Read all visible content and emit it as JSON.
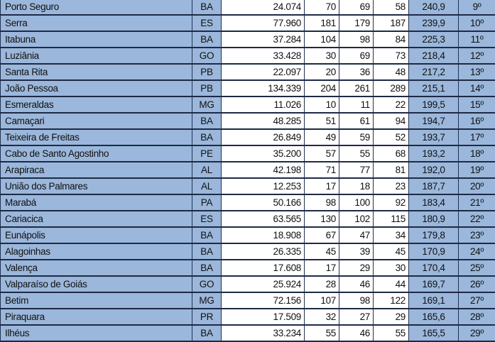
{
  "table": {
    "rows": [
      {
        "city": "Porto Seguro",
        "uf": "BA",
        "pop": "24.074",
        "a": "70",
        "b": "69",
        "c": "58",
        "index": "240,9",
        "rank": "9º"
      },
      {
        "city": "Serra",
        "uf": "ES",
        "pop": "77.960",
        "a": "181",
        "b": "179",
        "c": "187",
        "index": "239,9",
        "rank": "10º"
      },
      {
        "city": "Itabuna",
        "uf": "BA",
        "pop": "37.284",
        "a": "104",
        "b": "98",
        "c": "84",
        "index": "225,3",
        "rank": "11º"
      },
      {
        "city": "Luziânia",
        "uf": "GO",
        "pop": "33.428",
        "a": "30",
        "b": "69",
        "c": "73",
        "index": "218,4",
        "rank": "12º"
      },
      {
        "city": "Santa Rita",
        "uf": "PB",
        "pop": "22.097",
        "a": "20",
        "b": "36",
        "c": "48",
        "index": "217,2",
        "rank": "13º"
      },
      {
        "city": "João Pessoa",
        "uf": "PB",
        "pop": "134.339",
        "a": "204",
        "b": "261",
        "c": "289",
        "index": "215,1",
        "rank": "14º"
      },
      {
        "city": "Esmeraldas",
        "uf": "MG",
        "pop": "11.026",
        "a": "10",
        "b": "11",
        "c": "22",
        "index": "199,5",
        "rank": "15º"
      },
      {
        "city": "Camaçari",
        "uf": "BA",
        "pop": "48.285",
        "a": "51",
        "b": "61",
        "c": "94",
        "index": "194,7",
        "rank": "16º"
      },
      {
        "city": "Teixeira de Freitas",
        "uf": "BA",
        "pop": "26.849",
        "a": "49",
        "b": "59",
        "c": "52",
        "index": "193,7",
        "rank": "17º"
      },
      {
        "city": "Cabo de Santo Agostinho",
        "uf": "PE",
        "pop": "35.200",
        "a": "57",
        "b": "55",
        "c": "68",
        "index": "193,2",
        "rank": "18º"
      },
      {
        "city": "Arapiraca",
        "uf": "AL",
        "pop": "42.198",
        "a": "71",
        "b": "77",
        "c": "81",
        "index": "192,0",
        "rank": "19º"
      },
      {
        "city": "União dos Palmares",
        "uf": "AL",
        "pop": "12.253",
        "a": "17",
        "b": "18",
        "c": "23",
        "index": "187,7",
        "rank": "20º"
      },
      {
        "city": "Marabá",
        "uf": "PA",
        "pop": "50.166",
        "a": "98",
        "b": "100",
        "c": "92",
        "index": "183,4",
        "rank": "21º"
      },
      {
        "city": "Cariacica",
        "uf": "ES",
        "pop": "63.565",
        "a": "130",
        "b": "102",
        "c": "115",
        "index": "180,9",
        "rank": "22º"
      },
      {
        "city": "Eunápolis",
        "uf": "BA",
        "pop": "18.908",
        "a": "67",
        "b": "47",
        "c": "34",
        "index": "179,8",
        "rank": "23º"
      },
      {
        "city": "Alagoinhas",
        "uf": "BA",
        "pop": "26.335",
        "a": "45",
        "b": "39",
        "c": "45",
        "index": "170,9",
        "rank": "24º"
      },
      {
        "city": "Valença",
        "uf": "BA",
        "pop": "17.608",
        "a": "17",
        "b": "29",
        "c": "30",
        "index": "170,4",
        "rank": "25º"
      },
      {
        "city": "Valparaíso de Goiás",
        "uf": "GO",
        "pop": "25.924",
        "a": "28",
        "b": "46",
        "c": "44",
        "index": "169,7",
        "rank": "26º"
      },
      {
        "city": "Betim",
        "uf": "MG",
        "pop": "72.156",
        "a": "107",
        "b": "98",
        "c": "122",
        "index": "169,1",
        "rank": "27º"
      },
      {
        "city": "Piraquara",
        "uf": "PR",
        "pop": "17.509",
        "a": "32",
        "b": "27",
        "c": "29",
        "index": "165,6",
        "rank": "28º"
      },
      {
        "city": "Ilhéus",
        "uf": "BA",
        "pop": "33.234",
        "a": "55",
        "b": "46",
        "c": "55",
        "index": "165,5",
        "rank": "29º"
      }
    ]
  },
  "colors": {
    "header_blue": "#9bb7db",
    "border": "#1d2a45"
  }
}
